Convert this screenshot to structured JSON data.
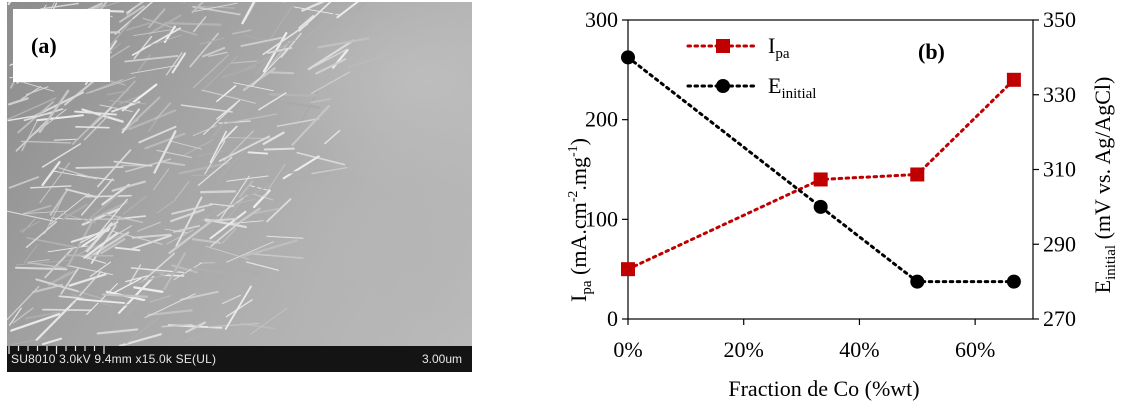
{
  "panel_a": {
    "label": "(a)",
    "sem_info": "SU8010 3.0kV 9.4mm x15.0k SE(UL)",
    "scale_bar": "3.00um"
  },
  "chart_data": {
    "type": "line",
    "panel_label": "(b)",
    "x": [
      0,
      33.3,
      50,
      66.7
    ],
    "xlabel": "Fraction de Co (%wt)",
    "xlim": [
      0,
      70
    ],
    "xticks": [
      "0%",
      "20%",
      "40%",
      "60%"
    ],
    "ylabel_left": {
      "main": "I",
      "sub": "pa",
      "unit_pre": " (mA.cm",
      "sup1": "-2",
      "unit_mid": ".mg",
      "sup2": "-1",
      "unit_post": ")"
    },
    "ylim_left": [
      0,
      300
    ],
    "yticks_left": [
      "0",
      "100",
      "200",
      "300"
    ],
    "ylabel_right": {
      "main": "E",
      "sub": "initial",
      "unit": " (mV vs. Ag/AgCl)"
    },
    "ylim_right": [
      270,
      350
    ],
    "yticks_right": [
      "270",
      "290",
      "310",
      "330",
      "350"
    ],
    "legend_position": "top-left",
    "grid": false,
    "series": [
      {
        "name_main": "I",
        "name_sub": "pa",
        "axis": "left",
        "marker": "square",
        "color": "#c00000",
        "values": [
          50,
          140,
          145,
          240
        ]
      },
      {
        "name_main": "E",
        "name_sub": "initial",
        "axis": "right",
        "marker": "circle",
        "color": "#000000",
        "values": [
          340,
          300,
          280,
          280
        ]
      }
    ]
  }
}
